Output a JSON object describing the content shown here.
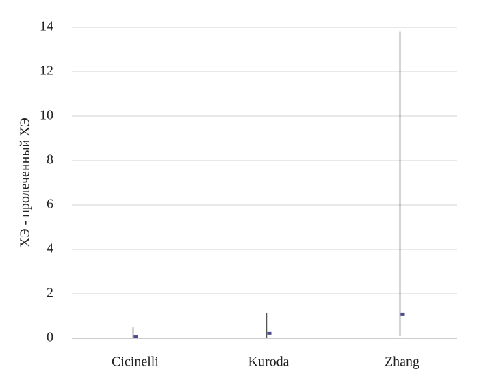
{
  "chart_data": {
    "type": "range",
    "ylabel": "ХЭ - пролеченный ХЭ",
    "categories": [
      "Cicinelli",
      "Kuroda",
      "Zhang"
    ],
    "values": [
      0.06,
      0.22,
      1.08
    ],
    "lows": [
      0,
      0,
      0.09
    ],
    "highs": [
      0.49,
      1.14,
      13.8
    ],
    "color": "#4b4b8c",
    "range_color": "#555555",
    "ylim": [
      0,
      14
    ],
    "yticks": [
      0,
      2,
      4,
      6,
      8,
      10,
      12,
      14
    ],
    "grid": true
  }
}
